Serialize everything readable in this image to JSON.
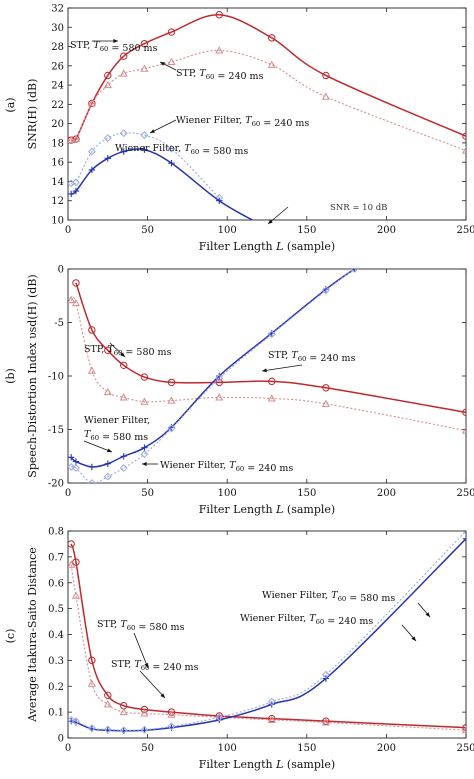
{
  "chart_data": [
    {
      "type": "line",
      "panel_label": "(a)",
      "xlabel": "Filter Length L (sample)",
      "ylabel": "SNR(H) (dB)",
      "xlim": [
        0,
        250
      ],
      "ylim": [
        10,
        32
      ],
      "xticks": [
        0,
        50,
        100,
        150,
        200,
        250
      ],
      "yticks": [
        10,
        12,
        14,
        16,
        18,
        20,
        22,
        24,
        26,
        28,
        30,
        32
      ],
      "series": [
        {
          "key": "stp580",
          "color": "#c0282d",
          "linestyle": "solid",
          "marker": "circle",
          "x": [
            2,
            5,
            15,
            25,
            35,
            48,
            65,
            95,
            128,
            162,
            250
          ],
          "y": [
            18.3,
            18.4,
            22.1,
            25.0,
            27.0,
            28.3,
            29.5,
            31.3,
            28.9,
            25.0,
            18.7
          ]
        },
        {
          "key": "stp240",
          "color": "#d88b8d",
          "linestyle": "dotted",
          "marker": "triangle",
          "x": [
            2,
            5,
            15,
            25,
            35,
            48,
            65,
            95,
            128,
            162,
            250
          ],
          "y": [
            18.3,
            18.4,
            22.1,
            24.0,
            25.2,
            25.7,
            26.4,
            27.6,
            26.1,
            22.8,
            17.2
          ]
        },
        {
          "key": "wf240",
          "color": "#9aa8e6",
          "linestyle": "dotted",
          "marker": "diamond",
          "x": [
            2,
            5,
            15,
            25,
            35,
            48,
            65,
            95
          ],
          "y": [
            13.8,
            13.9,
            17.1,
            18.5,
            19.0,
            18.8,
            17.4,
            12.3
          ]
        },
        {
          "key": "wf580",
          "color": "#2633b5",
          "linestyle": "solid",
          "marker": "plus",
          "x": [
            2,
            5,
            15,
            25,
            35,
            48,
            65,
            95,
            118
          ],
          "y": [
            12.7,
            13.0,
            15.2,
            16.4,
            17.1,
            17.3,
            15.9,
            12.0,
            9.8
          ]
        }
      ],
      "annotations": [
        {
          "text": "STP, T60 = 580 ms"
        },
        {
          "text": "STP, T60 = 240 ms"
        },
        {
          "text": "Wiener Filter, T60 = 240 ms"
        },
        {
          "text": "Wiener Filter, T60 = 580 ms"
        },
        {
          "text": "SNR = 10 dB"
        }
      ]
    },
    {
      "type": "line",
      "panel_label": "(b)",
      "xlabel": "Filter Length L (sample)",
      "ylabel": "Speech-Distortion Index v_sd(H) (dB)",
      "xlim": [
        0,
        250
      ],
      "ylim": [
        -20,
        0
      ],
      "xticks": [
        0,
        50,
        100,
        150,
        200,
        250
      ],
      "yticks": [
        -20,
        -15,
        -10,
        -5,
        0
      ],
      "series": [
        {
          "key": "stp580",
          "color": "#c0282d",
          "linestyle": "solid",
          "marker": "circle",
          "x": [
            5,
            15,
            25,
            35,
            48,
            65,
            95,
            128,
            162,
            250
          ],
          "y": [
            -1.3,
            -5.7,
            -7.6,
            -9.0,
            -10.1,
            -10.6,
            -10.6,
            -10.5,
            -11.1,
            -13.4
          ]
        },
        {
          "key": "stp240",
          "color": "#d88b8d",
          "linestyle": "dotted",
          "marker": "triangle",
          "x": [
            2,
            5,
            15,
            25,
            35,
            48,
            65,
            95,
            128,
            162,
            250
          ],
          "y": [
            -2.9,
            -3.2,
            -9.5,
            -11.5,
            -12.0,
            -12.4,
            -12.3,
            -12.0,
            -12.1,
            -12.6,
            -15.1
          ]
        },
        {
          "key": "wf580",
          "color": "#2633b5",
          "linestyle": "solid",
          "marker": "plus",
          "x": [
            2,
            5,
            15,
            25,
            35,
            48,
            65,
            95,
            128,
            162,
            180
          ],
          "y": [
            -17.6,
            -18.0,
            -18.5,
            -18.2,
            -17.5,
            -16.7,
            -14.8,
            -10.0,
            -6.0,
            -1.9,
            0
          ]
        },
        {
          "key": "wf240",
          "color": "#9aa8e6",
          "linestyle": "dotted",
          "marker": "diamond",
          "x": [
            2,
            5,
            15,
            25,
            35,
            48,
            65,
            95,
            128,
            162,
            180
          ],
          "y": [
            -18.5,
            -18.6,
            -20.0,
            -19.4,
            -18.6,
            -17.3,
            -14.9,
            -10.2,
            -6.1,
            -2.0,
            0
          ]
        }
      ],
      "annotations": [
        {
          "text": "STP, T60 = 580 ms"
        },
        {
          "text": "STP, T60 = 240 ms"
        },
        {
          "text": "Wiener Filter,"
        },
        {
          "text": "T60 = 580 ms"
        },
        {
          "text": "Wiener Filter, T60 = 240 ms"
        }
      ]
    },
    {
      "type": "line",
      "panel_label": "(c)",
      "xlabel": "Filter Length L (sample)",
      "ylabel": "Average Itakura-Saito Distance",
      "xlim": [
        0,
        250
      ],
      "ylim": [
        0,
        0.8
      ],
      "xticks": [
        0,
        50,
        100,
        150,
        200,
        250
      ],
      "yticks": [
        0,
        0.1,
        0.2,
        0.3,
        0.4,
        0.5,
        0.6,
        0.7,
        0.8
      ],
      "series": [
        {
          "key": "stp580",
          "color": "#c0282d",
          "linestyle": "solid",
          "marker": "circle",
          "x": [
            2,
            5,
            15,
            25,
            35,
            48,
            65,
            95,
            128,
            162,
            250
          ],
          "y": [
            0.75,
            0.68,
            0.3,
            0.165,
            0.125,
            0.11,
            0.1,
            0.085,
            0.075,
            0.065,
            0.04
          ]
        },
        {
          "key": "stp240",
          "color": "#d88b8d",
          "linestyle": "dotted",
          "marker": "triangle",
          "x": [
            2,
            5,
            15,
            25,
            35,
            48,
            65,
            95,
            128,
            162,
            250
          ],
          "y": [
            0.67,
            0.55,
            0.21,
            0.13,
            0.1,
            0.095,
            0.09,
            0.08,
            0.07,
            0.06,
            0.03
          ]
        },
        {
          "key": "wf580",
          "color": "#2633b5",
          "linestyle": "solid",
          "marker": "plus",
          "x": [
            2,
            5,
            15,
            25,
            35,
            48,
            65,
            95,
            128,
            162,
            250
          ],
          "y": [
            0.065,
            0.06,
            0.035,
            0.03,
            0.028,
            0.03,
            0.04,
            0.07,
            0.13,
            0.23,
            0.77
          ]
        },
        {
          "key": "wf240",
          "color": "#9aa8e6",
          "linestyle": "dotted",
          "marker": "diamond",
          "x": [
            2,
            5,
            15,
            25,
            35,
            48,
            65,
            95,
            128,
            162,
            250
          ],
          "y": [
            0.07,
            0.065,
            0.038,
            0.033,
            0.03,
            0.032,
            0.045,
            0.08,
            0.14,
            0.245,
            0.8
          ]
        }
      ],
      "annotations": [
        {
          "text": "STP, T60 = 580 ms"
        },
        {
          "text": "STP, T60 = 240 ms"
        },
        {
          "text": "Wiener Filter, T60 = 580 ms"
        },
        {
          "text": "Wiener Filter, T60 = 240 ms"
        }
      ]
    }
  ]
}
